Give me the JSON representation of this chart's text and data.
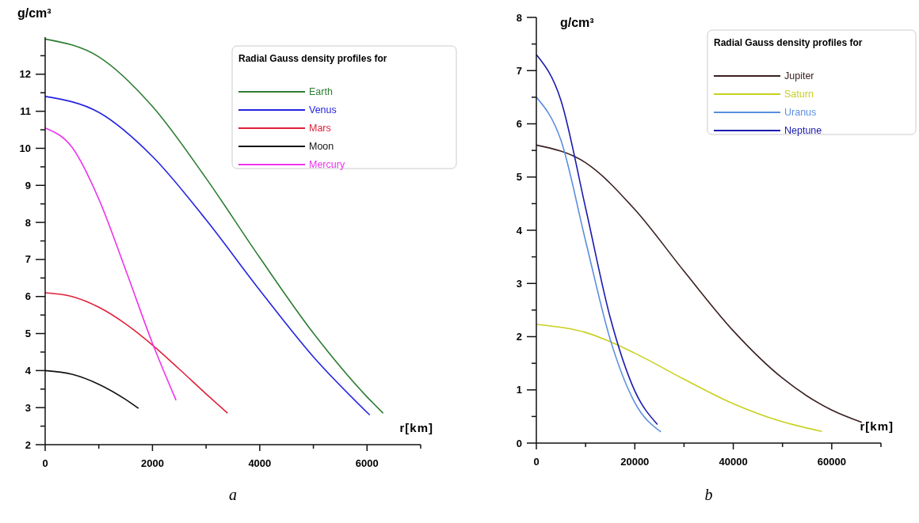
{
  "chart_data": [
    {
      "type": "line",
      "ylabel": "g/cm³",
      "xlabel": "r[km]",
      "legend_title": "Radial Gauss density profiles for",
      "legend": "top right",
      "annotations": [
        "a"
      ],
      "xlim": [
        0,
        7000
      ],
      "ylim": [
        2,
        13
      ],
      "xticks": [
        0,
        {
          "value": 1000,
          "label": null
        },
        2000,
        {
          "value": 3000,
          "label": null
        },
        4000,
        {
          "value": 5000,
          "label": null
        },
        6000,
        {
          "value": 7000,
          "label": null
        }
      ],
      "yticks": [
        2,
        {
          "value": 2.5,
          "label": null
        },
        3,
        {
          "value": 3.5,
          "label": null
        },
        4,
        {
          "value": 4.5,
          "label": null
        },
        5,
        {
          "value": 5.5,
          "label": null
        },
        6,
        {
          "value": 6.5,
          "label": null
        },
        7,
        {
          "value": 7.5,
          "label": null
        },
        8,
        {
          "value": 8.5,
          "label": null
        },
        9,
        {
          "value": 9.5,
          "label": null
        },
        10,
        {
          "value": 10.5,
          "label": null
        },
        11,
        {
          "value": 11.5,
          "label": null
        },
        12,
        {
          "value": 12.5,
          "label": null
        }
      ],
      "series": [
        {
          "name": "Earth",
          "color": "#2e7d32",
          "x": [
            0,
            1000,
            2000,
            3000,
            4000,
            5000,
            6000,
            6300
          ],
          "values": [
            12.95,
            12.47,
            11.13,
            9.19,
            7.05,
            5.01,
            3.29,
            2.85
          ]
        },
        {
          "name": "Venus",
          "color": "#2424e0",
          "x": [
            0,
            1000,
            2000,
            3000,
            4000,
            5000,
            6050
          ],
          "values": [
            11.4,
            10.97,
            9.78,
            8.07,
            6.17,
            4.37,
            2.8
          ]
        },
        {
          "name": "Mars",
          "color": "#e0203a",
          "x": [
            0,
            500,
            1000,
            1500,
            2000,
            2500,
            3000,
            3400
          ],
          "values": [
            6.1,
            6.0,
            5.71,
            5.26,
            4.69,
            4.04,
            3.37,
            2.85
          ]
        },
        {
          "name": "Moon",
          "color": "#111111",
          "x": [
            0,
            500,
            1000,
            1500,
            1740
          ],
          "values": [
            4.0,
            3.9,
            3.63,
            3.22,
            2.98
          ]
        },
        {
          "name": "Mercury",
          "color": "#ee33ee",
          "x": [
            0,
            500,
            1000,
            1500,
            2000,
            2440
          ],
          "values": [
            10.55,
            10.03,
            8.63,
            6.72,
            4.74,
            3.2
          ]
        }
      ]
    },
    {
      "type": "line",
      "ylabel": "g/cm³",
      "xlabel": "r[km]",
      "legend_title": "Radial Gauss density profiles for",
      "legend": "top right",
      "annotations": [
        "b"
      ],
      "xlim": [
        0,
        70000
      ],
      "ylim": [
        0,
        8
      ],
      "xticks": [
        0,
        {
          "value": 10000,
          "label": null
        },
        20000,
        {
          "value": 30000,
          "label": null
        },
        40000,
        {
          "value": 50000,
          "label": null
        },
        60000,
        {
          "value": 70000,
          "label": null
        }
      ],
      "yticks": [
        0,
        {
          "value": 0.5,
          "label": null
        },
        1,
        {
          "value": 1.5,
          "label": null
        },
        2,
        {
          "value": 2.5,
          "label": null
        },
        3,
        {
          "value": 3.5,
          "label": null
        },
        4,
        {
          "value": 4.5,
          "label": null
        },
        5,
        {
          "value": 5.5,
          "label": null
        },
        6,
        {
          "value": 6.5,
          "label": null
        },
        7,
        {
          "value": 7.5,
          "label": null
        },
        8
      ],
      "series": [
        {
          "name": "Jupiter",
          "color": "#3a2020",
          "x": [
            0,
            10000,
            20000,
            30000,
            40000,
            50000,
            60000,
            66100
          ],
          "values": [
            5.6,
            5.27,
            4.39,
            3.23,
            2.11,
            1.22,
            0.62,
            0.39
          ]
        },
        {
          "name": "Saturn",
          "color": "#c8d020",
          "x": [
            0,
            10000,
            20000,
            30000,
            40000,
            50000,
            58000
          ],
          "values": [
            2.23,
            2.08,
            1.69,
            1.2,
            0.74,
            0.4,
            0.22
          ]
        },
        {
          "name": "Uranus",
          "color": "#5a8ee0",
          "x": [
            0,
            5000,
            10000,
            15000,
            20000,
            25300
          ],
          "values": [
            6.5,
            5.69,
            3.8,
            1.95,
            0.76,
            0.21
          ]
        },
        {
          "name": "Neptune",
          "color": "#1a1ab0",
          "x": [
            0,
            5000,
            10000,
            15000,
            20000,
            24600
          ],
          "values": [
            7.3,
            6.44,
            4.42,
            2.36,
            0.98,
            0.35
          ]
        }
      ]
    }
  ]
}
